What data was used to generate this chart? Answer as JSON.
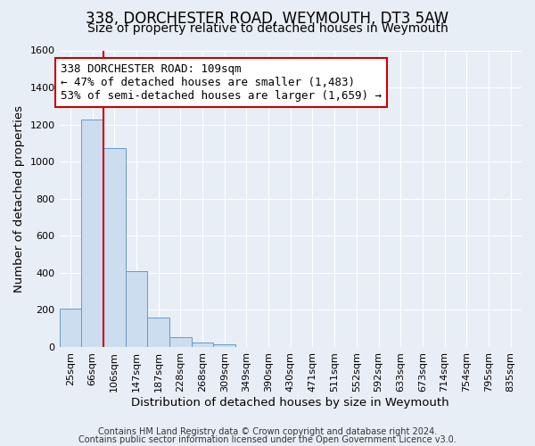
{
  "title": "338, DORCHESTER ROAD, WEYMOUTH, DT3 5AW",
  "subtitle": "Size of property relative to detached houses in Weymouth",
  "xlabel": "Distribution of detached houses by size in Weymouth",
  "ylabel": "Number of detached properties",
  "footer_line1": "Contains HM Land Registry data © Crown copyright and database right 2024.",
  "footer_line2": "Contains public sector information licensed under the Open Government Licence v3.0.",
  "bar_labels": [
    "25sqm",
    "66sqm",
    "106sqm",
    "147sqm",
    "187sqm",
    "228sqm",
    "268sqm",
    "309sqm",
    "349sqm",
    "390sqm",
    "430sqm",
    "471sqm",
    "511sqm",
    "552sqm",
    "592sqm",
    "633sqm",
    "673sqm",
    "714sqm",
    "754sqm",
    "795sqm",
    "835sqm"
  ],
  "bar_values": [
    205,
    1225,
    1075,
    410,
    160,
    52,
    25,
    15,
    0,
    0,
    0,
    0,
    0,
    0,
    0,
    0,
    0,
    0,
    0,
    0,
    0
  ],
  "bar_color": "#ccddf0",
  "bar_edge_color": "#6699cc",
  "bg_color": "#e8eef5",
  "plot_bg_color": "#e8eef5",
  "grid_color": "#ffffff",
  "vline_x_index": 2,
  "vline_color": "#cc0000",
  "annotation_title": "338 DORCHESTER ROAD: 109sqm",
  "annotation_line1": "← 47% of detached houses are smaller (1,483)",
  "annotation_line2": "53% of semi-detached houses are larger (1,659) →",
  "annotation_box_color": "#ffffff",
  "annotation_box_edge": "#cc0000",
  "ylim": [
    0,
    1600
  ],
  "yticks": [
    0,
    200,
    400,
    600,
    800,
    1000,
    1200,
    1400,
    1600
  ],
  "title_fontsize": 12,
  "subtitle_fontsize": 10,
  "axis_label_fontsize": 9.5,
  "tick_fontsize": 8,
  "annotation_fontsize": 9,
  "footer_fontsize": 7
}
